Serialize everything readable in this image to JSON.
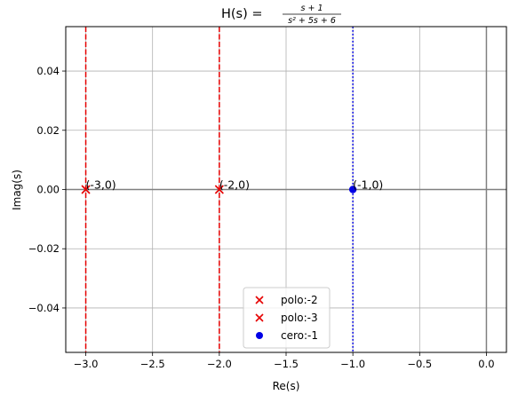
{
  "chart_data": {
    "type": "scatter",
    "title_prefix": "H(s) = ",
    "title_num": "s + 1",
    "title_den": "s² + 5s + 6",
    "xlabel": "Re(s)",
    "ylabel": "Imag(s)",
    "xlim": [
      -3.15,
      0.15
    ],
    "ylim": [
      -0.055,
      0.055
    ],
    "xticks": [
      -3.0,
      -2.5,
      -2.0,
      -1.5,
      -1.0,
      -0.5,
      0.0
    ],
    "xtick_labels": [
      "−3.0",
      "−2.5",
      "−2.0",
      "−1.5",
      "−1.0",
      "−0.5",
      "0.0"
    ],
    "yticks": [
      -0.04,
      -0.02,
      0.0,
      0.02,
      0.04
    ],
    "ytick_labels": [
      "−0.04",
      "−0.02",
      "0.00",
      "0.02",
      "0.04"
    ],
    "grid": true,
    "series": [
      {
        "name": "polo:-2",
        "kind": "pole",
        "x": -2,
        "y": 0,
        "color": "#e60000",
        "marker": "x",
        "annotation": "(-2,0)",
        "vline": "dashed"
      },
      {
        "name": "polo:-3",
        "kind": "pole",
        "x": -3,
        "y": 0,
        "color": "#e60000",
        "marker": "x",
        "annotation": "(-3,0)",
        "vline": "dashed"
      },
      {
        "name": "cero:-1",
        "kind": "zero",
        "x": -1,
        "y": 0,
        "color": "#0000e6",
        "marker": "o",
        "annotation": "(-1,0)",
        "vline": "dotted"
      }
    ],
    "axis_lines": {
      "x0": 0,
      "y0": 0,
      "color": "#808080"
    },
    "legend": {
      "position": "lower-center"
    }
  }
}
